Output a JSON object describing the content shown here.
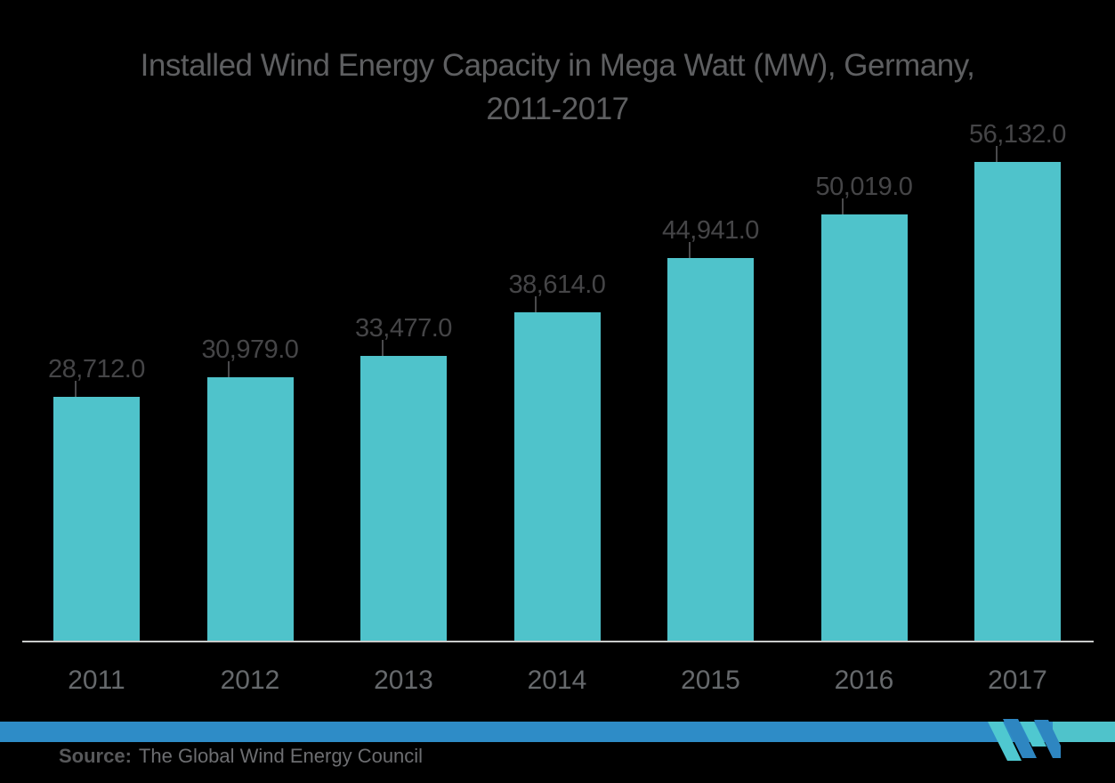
{
  "chart_data": {
    "type": "bar",
    "title": "Installed Wind Energy Capacity in Mega Watt (MW), Germany, 2011-2017",
    "title_line1": "Installed Wind Energy Capacity in Mega Watt (MW), Germany,",
    "title_line2": "2011-2017",
    "categories": [
      "2011",
      "2012",
      "2013",
      "2014",
      "2015",
      "2016",
      "2017"
    ],
    "values": [
      28712,
      30979,
      33477,
      38614,
      44941,
      50019,
      56132
    ],
    "value_labels": [
      "28,712.0",
      "30,979.0",
      "33,477.0",
      "38,614.0",
      "44,941.0",
      "50,019.0",
      "56,132.0"
    ],
    "xlabel": "",
    "ylabel": "",
    "ylim": [
      0,
      56132
    ],
    "grid": false,
    "legend": "none",
    "bar_color": "#4FC3CB"
  },
  "footer": {
    "source_label": "Source:",
    "source_text": "The Global Wind Energy Council",
    "logo_name": "mordor-intelligence-logo"
  },
  "colors": {
    "background": "#000000",
    "bar": "#4FC3CB",
    "title_text": "#5E5F61",
    "value_label_text": "#454547",
    "axis_label_text": "#66696C",
    "axis_line": "#C9CBCA",
    "footer_bar_blue": "#2E8CC7",
    "footer_bar_teal": "#4FC3CB",
    "logo_blue": "#2E86C1",
    "logo_teal": "#4FC8D0"
  }
}
